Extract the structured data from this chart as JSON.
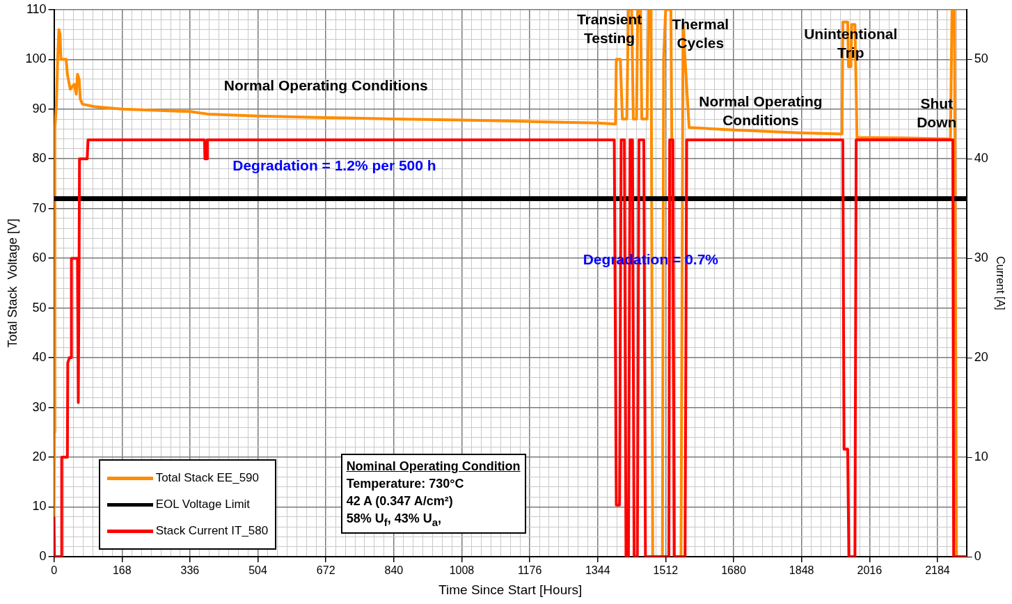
{
  "chart_data": {
    "type": "line",
    "xlabel": "Time Since Start [Hours]",
    "ylabel": "Total Stack  Voltage [V]",
    "y2label": "Current [A]",
    "xlim": [
      0,
      2256
    ],
    "xticks": [
      0,
      {
        "value": 24,
        "label": null
      },
      {
        "value": 48,
        "label": null
      },
      {
        "value": 72,
        "label": null
      },
      {
        "value": 96,
        "label": null
      },
      {
        "value": 120,
        "label": null
      },
      {
        "value": 144,
        "label": null
      },
      168,
      {
        "value": 192,
        "label": null
      },
      {
        "value": 216,
        "label": null
      },
      {
        "value": 240,
        "label": null
      },
      {
        "value": 264,
        "label": null
      },
      {
        "value": 288,
        "label": null
      },
      {
        "value": 312,
        "label": null
      },
      336,
      {
        "value": 360,
        "label": null
      },
      {
        "value": 384,
        "label": null
      },
      {
        "value": 408,
        "label": null
      },
      {
        "value": 432,
        "label": null
      },
      {
        "value": 456,
        "label": null
      },
      {
        "value": 480,
        "label": null
      },
      504,
      {
        "value": 528,
        "label": null
      },
      {
        "value": 552,
        "label": null
      },
      {
        "value": 576,
        "label": null
      },
      {
        "value": 600,
        "label": null
      },
      {
        "value": 624,
        "label": null
      },
      {
        "value": 648,
        "label": null
      },
      672,
      {
        "value": 696,
        "label": null
      },
      {
        "value": 720,
        "label": null
      },
      {
        "value": 744,
        "label": null
      },
      {
        "value": 768,
        "label": null
      },
      {
        "value": 792,
        "label": null
      },
      {
        "value": 816,
        "label": null
      },
      840,
      {
        "value": 864,
        "label": null
      },
      {
        "value": 888,
        "label": null
      },
      {
        "value": 912,
        "label": null
      },
      {
        "value": 936,
        "label": null
      },
      {
        "value": 960,
        "label": null
      },
      {
        "value": 984,
        "label": null
      },
      1008,
      {
        "value": 1032,
        "label": null
      },
      {
        "value": 1056,
        "label": null
      },
      {
        "value": 1080,
        "label": null
      },
      {
        "value": 1104,
        "label": null
      },
      {
        "value": 1128,
        "label": null
      },
      {
        "value": 1152,
        "label": null
      },
      1176,
      {
        "value": 1200,
        "label": null
      },
      {
        "value": 1224,
        "label": null
      },
      {
        "value": 1248,
        "label": null
      },
      {
        "value": 1272,
        "label": null
      },
      {
        "value": 1296,
        "label": null
      },
      {
        "value": 1320,
        "label": null
      },
      1344,
      {
        "value": 1368,
        "label": null
      },
      {
        "value": 1392,
        "label": null
      },
      {
        "value": 1416,
        "label": null
      },
      {
        "value": 1440,
        "label": null
      },
      {
        "value": 1464,
        "label": null
      },
      {
        "value": 1488,
        "label": null
      },
      1512,
      {
        "value": 1536,
        "label": null
      },
      {
        "value": 1560,
        "label": null
      },
      {
        "value": 1584,
        "label": null
      },
      {
        "value": 1608,
        "label": null
      },
      {
        "value": 1632,
        "label": null
      },
      {
        "value": 1656,
        "label": null
      },
      1680,
      {
        "value": 1704,
        "label": null
      },
      {
        "value": 1728,
        "label": null
      },
      {
        "value": 1752,
        "label": null
      },
      {
        "value": 1776,
        "label": null
      },
      {
        "value": 1800,
        "label": null
      },
      {
        "value": 1824,
        "label": null
      },
      1848,
      {
        "value": 1872,
        "label": null
      },
      {
        "value": 1896,
        "label": null
      },
      {
        "value": 1920,
        "label": null
      },
      {
        "value": 1944,
        "label": null
      },
      {
        "value": 1968,
        "label": null
      },
      {
        "value": 1992,
        "label": null
      },
      2016,
      {
        "value": 2040,
        "label": null
      },
      {
        "value": 2064,
        "label": null
      },
      {
        "value": 2088,
        "label": null
      },
      {
        "value": 2112,
        "label": null
      },
      {
        "value": 2136,
        "label": null
      },
      {
        "value": 2160,
        "label": null
      },
      2184,
      {
        "value": 2208,
        "label": null
      },
      {
        "value": 2232,
        "label": null
      }
    ],
    "ylim": [
      0,
      110
    ],
    "yticks": [
      0,
      {
        "value": 2,
        "label": null
      },
      {
        "value": 4,
        "label": null
      },
      {
        "value": 6,
        "label": null
      },
      {
        "value": 8,
        "label": null
      },
      10,
      {
        "value": 12,
        "label": null
      },
      {
        "value": 14,
        "label": null
      },
      {
        "value": 16,
        "label": null
      },
      {
        "value": 18,
        "label": null
      },
      20,
      {
        "value": 22,
        "label": null
      },
      {
        "value": 24,
        "label": null
      },
      {
        "value": 26,
        "label": null
      },
      {
        "value": 28,
        "label": null
      },
      30,
      {
        "value": 32,
        "label": null
      },
      {
        "value": 34,
        "label": null
      },
      {
        "value": 36,
        "label": null
      },
      {
        "value": 38,
        "label": null
      },
      40,
      {
        "value": 42,
        "label": null
      },
      {
        "value": 44,
        "label": null
      },
      {
        "value": 46,
        "label": null
      },
      {
        "value": 48,
        "label": null
      },
      50,
      {
        "value": 52,
        "label": null
      },
      {
        "value": 54,
        "label": null
      },
      {
        "value": 56,
        "label": null
      },
      {
        "value": 58,
        "label": null
      },
      60,
      {
        "value": 62,
        "label": null
      },
      {
        "value": 64,
        "label": null
      },
      {
        "value": 66,
        "label": null
      },
      {
        "value": 68,
        "label": null
      },
      70,
      {
        "value": 72,
        "label": null
      },
      {
        "value": 74,
        "label": null
      },
      {
        "value": 76,
        "label": null
      },
      {
        "value": 78,
        "label": null
      },
      80,
      {
        "value": 82,
        "label": null
      },
      {
        "value": 84,
        "label": null
      },
      {
        "value": 86,
        "label": null
      },
      {
        "value": 88,
        "label": null
      },
      90,
      {
        "value": 92,
        "label": null
      },
      {
        "value": 94,
        "label": null
      },
      {
        "value": 96,
        "label": null
      },
      {
        "value": 98,
        "label": null
      },
      100,
      {
        "value": 102,
        "label": null
      },
      {
        "value": 104,
        "label": null
      },
      {
        "value": 106,
        "label": null
      },
      {
        "value": 108,
        "label": null
      },
      110
    ],
    "y2lim": [
      0,
      55
    ],
    "y2ticks": [
      0,
      10,
      20,
      30,
      40,
      50
    ],
    "grid": true,
    "legend": "bottom left",
    "marker": "none",
    "series": [
      {
        "name": "Total Stack EE_590",
        "color": "#ff8c00",
        "x": [
          0,
          1,
          2,
          6,
          9,
          12,
          15,
          17,
          30,
          33,
          40,
          50,
          55,
          58,
          62,
          65,
          70,
          100,
          168,
          336,
          380,
          504,
          672,
          840,
          1008,
          1176,
          1344,
          1388,
          1390,
          1400,
          1405,
          1416,
          1420,
          1428,
          1432,
          1440,
          1443,
          1450,
          1453,
          1466,
          1470,
          1476,
          1480,
          1504,
          1507,
          1512,
          1525,
          1534,
          1550,
          1555,
          1560,
          1570,
          1680,
          1848,
          1948,
          1950,
          1962,
          1964,
          1970,
          1972,
          1980,
          1985,
          2100,
          2216,
          2220,
          2226,
          2231,
          2256
        ],
        "values": [
          8,
          25,
          86,
          91,
          100,
          106,
          105,
          100,
          100,
          97,
          94,
          95,
          93,
          97,
          96,
          92,
          91,
          90.5,
          90,
          89.5,
          89,
          88.6,
          88.3,
          88,
          87.8,
          87.5,
          87.2,
          87,
          100,
          100,
          88,
          88,
          110,
          110,
          88,
          88,
          110,
          110,
          88,
          88,
          110,
          110,
          0,
          0,
          100,
          110,
          110,
          0,
          0,
          107,
          100,
          86.3,
          85.8,
          85.2,
          85,
          107.5,
          107.5,
          98.5,
          98.5,
          107,
          107,
          84.3,
          84.2,
          84,
          110,
          110,
          0,
          0
        ]
      },
      {
        "name": "EOL Voltage Limit",
        "color": "#000000",
        "x": [
          0,
          2256
        ],
        "values": [
          72,
          72
        ]
      },
      {
        "name": "Stack Current IT_580",
        "color": "#ff0000",
        "axis": "y2",
        "x": [
          0,
          1,
          19,
          19,
          33,
          34,
          38,
          42,
          43,
          58,
          60,
          62,
          63,
          82,
          84,
          372,
          373,
          378,
          379,
          1385,
          1390,
          1398,
          1402,
          1410,
          1414,
          1420,
          1424,
          1430,
          1434,
          1442,
          1446,
          1458,
          1462,
          1520,
          1522,
          1530,
          1533,
          1560,
          1564,
          1950,
          1953,
          1962,
          1965,
          1980,
          1983,
          2222,
          2224,
          2256
        ],
        "values": [
          4,
          0,
          0,
          10,
          10,
          19.5,
          20,
          20,
          30,
          30,
          15.5,
          30,
          40,
          40,
          41.9,
          41.9,
          40,
          40,
          41.9,
          41.9,
          5.2,
          5.2,
          41.9,
          41.9,
          0,
          0,
          41.9,
          41.9,
          0,
          0,
          41.9,
          41.9,
          0,
          0,
          41.9,
          41.9,
          0,
          0,
          41.9,
          41.9,
          10.8,
          10.8,
          0,
          0,
          41.9,
          41.9,
          0,
          0
        ]
      }
    ],
    "annotations": [
      "Transient\nTesting",
      "Thermal\nCycles",
      "Unintentional\nTrip",
      "Shut\nDown",
      "Normal Operating Conditions",
      "Normal Operating\nConditions",
      "Degradation = 1.2% per 500 h",
      "Degradation = 0.7%",
      "Nominal Operating Condition",
      "Temperature: 730°C",
      "42 A (0.347 A/cm²)",
      "58% U$_{f}$,  43% U$_{a}$,"
    ]
  }
}
